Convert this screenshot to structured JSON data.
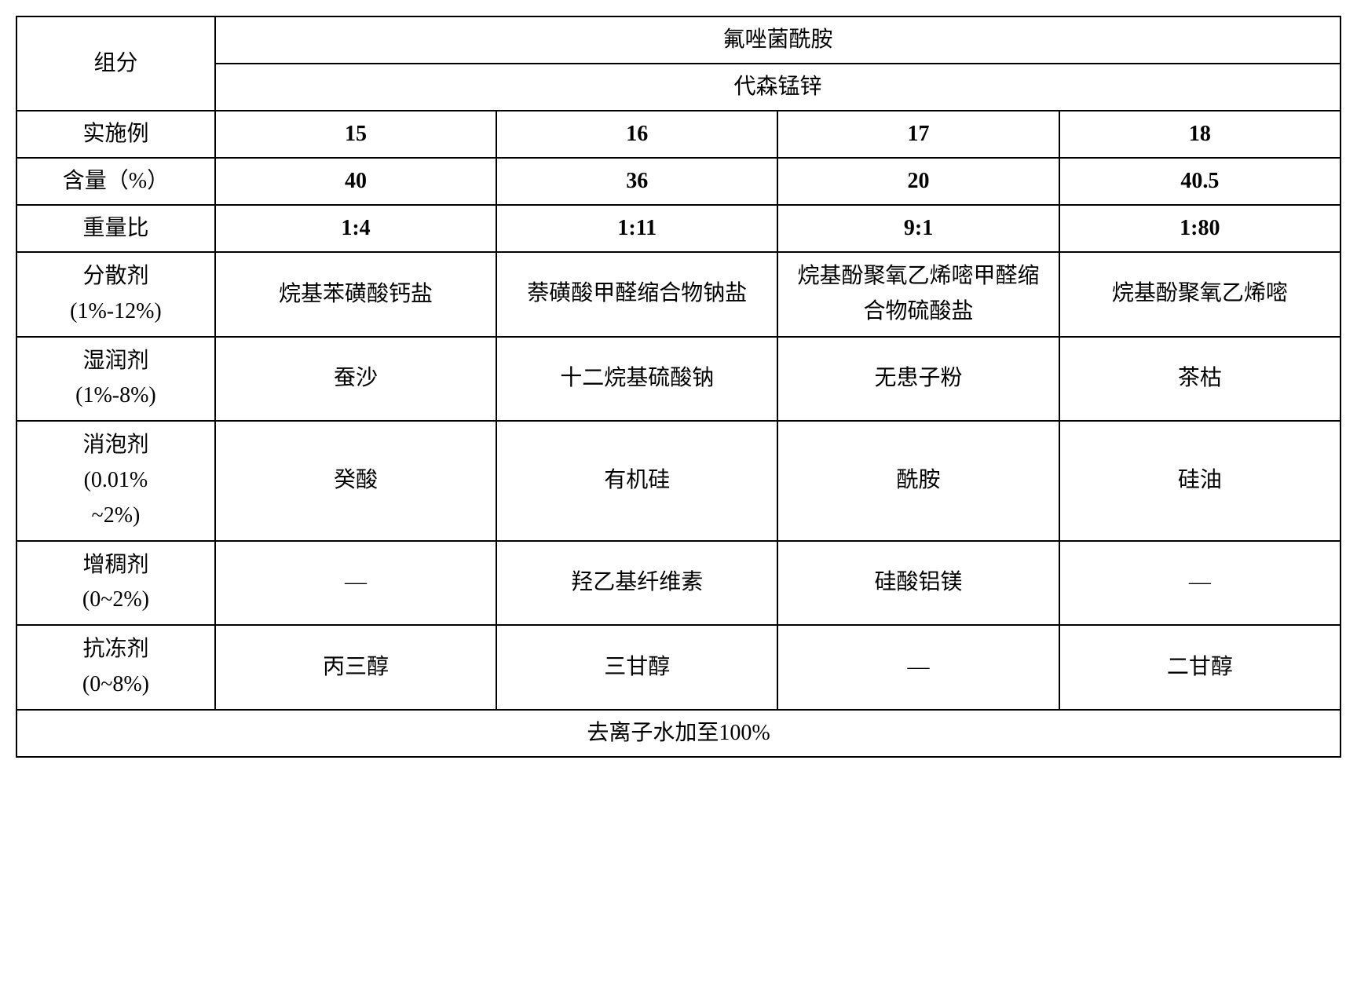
{
  "header": {
    "component_label": "组分",
    "compound_1": "氟唑菌酰胺",
    "compound_2": "代森锰锌"
  },
  "rows": {
    "example": {
      "label": "实施例",
      "values": [
        "15",
        "16",
        "17",
        "18"
      ]
    },
    "content": {
      "label": "含量（%）",
      "values": [
        "40",
        "36",
        "20",
        "40.5"
      ]
    },
    "weight_ratio": {
      "label": "重量比",
      "values": [
        "1:4",
        "1:11",
        "9:1",
        "1:80"
      ]
    },
    "dispersant": {
      "label_line1": "分散剂",
      "label_line2": "(1%-12%)",
      "values": [
        "烷基苯磺酸钙盐",
        "萘磺酸甲醛缩合物钠盐",
        "烷基酚聚氧乙烯嘧甲醛缩合物硫酸盐",
        "烷基酚聚氧乙烯嘧"
      ]
    },
    "wetting_agent": {
      "label_line1": "湿润剂",
      "label_line2": "(1%-8%)",
      "values": [
        "蚕沙",
        "十二烷基硫酸钠",
        "无患子粉",
        "茶枯"
      ]
    },
    "defoamer": {
      "label_line1": "消泡剂",
      "label_line2": "(0.01%",
      "label_line3": "~2%)",
      "values": [
        "癸酸",
        "有机硅",
        "酰胺",
        "硅油"
      ]
    },
    "thickener": {
      "label_line1": "增稠剂",
      "label_line2": "(0~2%)",
      "values": [
        "—",
        "羟乙基纤维素",
        "硅酸铝镁",
        "—"
      ]
    },
    "antifreeze": {
      "label_line1": "抗冻剂",
      "label_line2": "(0~8%)",
      "values": [
        "丙三醇",
        "三甘醇",
        "—",
        "二甘醇"
      ]
    }
  },
  "footer": {
    "text": "去离子水加至100%"
  },
  "styling": {
    "border_color": "#000000",
    "border_width": 2,
    "background_color": "#ffffff",
    "font_size": 28,
    "font_family_regular": "SimSun",
    "font_family_bold": "SimHei",
    "font_family_numbers": "Times New Roman"
  }
}
